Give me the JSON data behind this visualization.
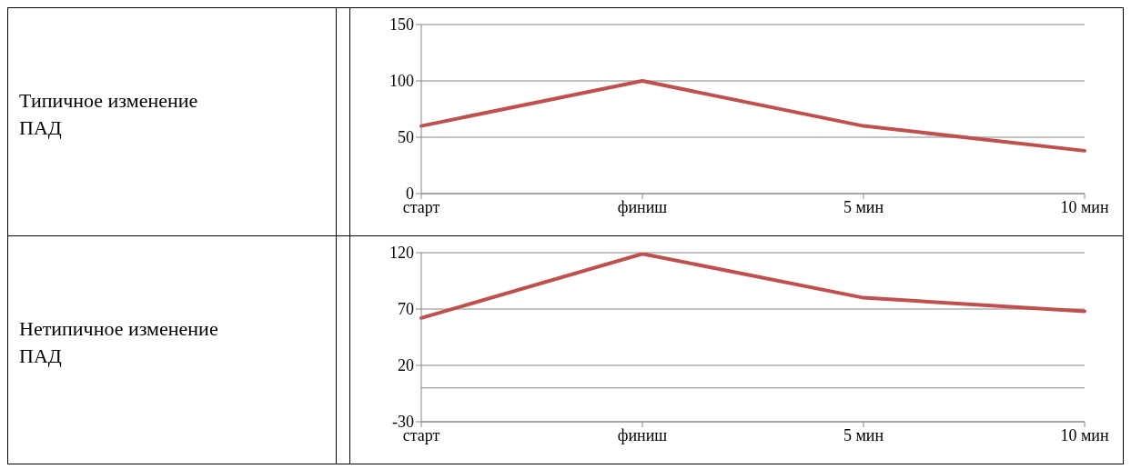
{
  "chart_data": [
    {
      "type": "line",
      "ylabel": "Типичное изменение ПАД",
      "categories": [
        "старт",
        "финиш",
        "5 мин",
        "10 мин"
      ],
      "series": [
        {
          "color": "#c0504d",
          "values": [
            60,
            100,
            60,
            38
          ]
        }
      ],
      "ylim": [
        0,
        150
      ],
      "yticks": [
        0,
        50,
        100,
        150
      ],
      "grid": "y",
      "legend": false,
      "marker": "none",
      "line_style": "solid"
    },
    {
      "type": "line",
      "ylabel": "Нетипичное изменение ПАД",
      "categories": [
        "старт",
        "финиш",
        "5 мин",
        "10 мин"
      ],
      "series": [
        {
          "color": "#c0504d",
          "values": [
            62,
            119,
            80,
            68
          ]
        }
      ],
      "ylim": [
        -30,
        120
      ],
      "yticks": [
        -30,
        20,
        70,
        120
      ],
      "grid": "y",
      "legend": false,
      "marker": "none",
      "line_style": "solid",
      "ref_lines": [
        {
          "axis": "y",
          "value": 0,
          "color": "#868686"
        }
      ]
    }
  ]
}
